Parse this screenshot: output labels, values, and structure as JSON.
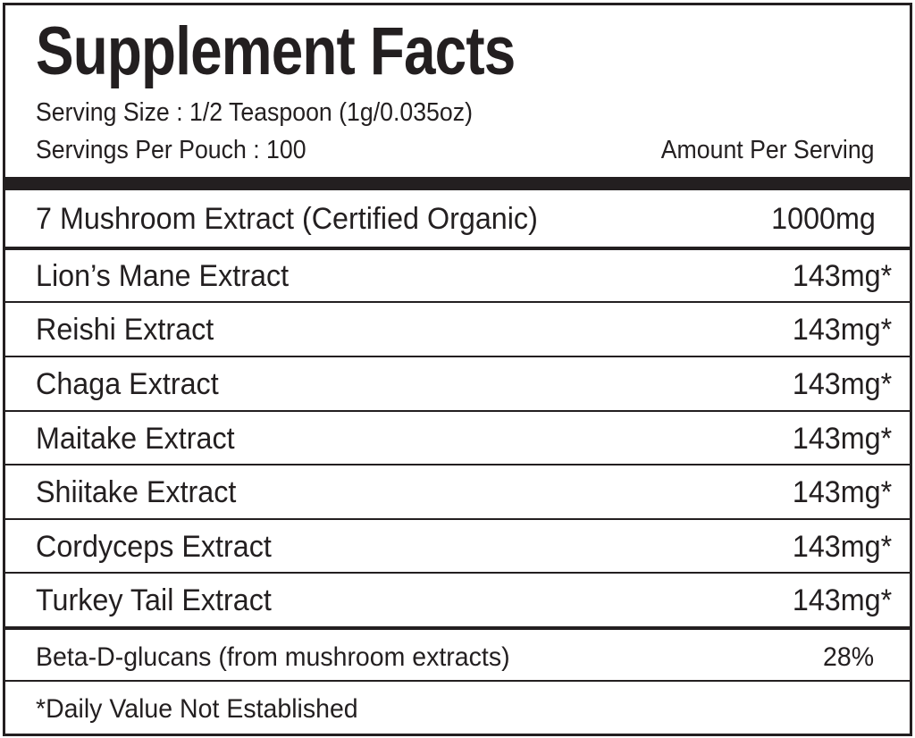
{
  "title": "Supplement Facts",
  "serving_size": "Serving Size : 1/2 Teaspoon (1g/0.035oz)",
  "servings_per": "Servings Per Pouch : 100",
  "amount_header": "Amount Per Serving",
  "main_ingredient": {
    "name": "7 Mushroom Extract (Certified Organic)",
    "amount": "1000mg"
  },
  "ingredients": [
    {
      "name": "Lion’s Mane Extract",
      "amount": "143mg*"
    },
    {
      "name": "Reishi Extract",
      "amount": "143mg*"
    },
    {
      "name": "Chaga Extract",
      "amount": "143mg*"
    },
    {
      "name": "Maitake Extract",
      "amount": "143mg*"
    },
    {
      "name": "Shiitake Extract",
      "amount": "143mg*"
    },
    {
      "name": "Cordyceps Extract",
      "amount": "143mg*"
    },
    {
      "name": "Turkey Tail Extract",
      "amount": "143mg*"
    }
  ],
  "beta_glucans": {
    "name": "Beta-D-glucans (from mushroom extracts)",
    "amount": "28%"
  },
  "footnote": "*Daily Value Not Established"
}
